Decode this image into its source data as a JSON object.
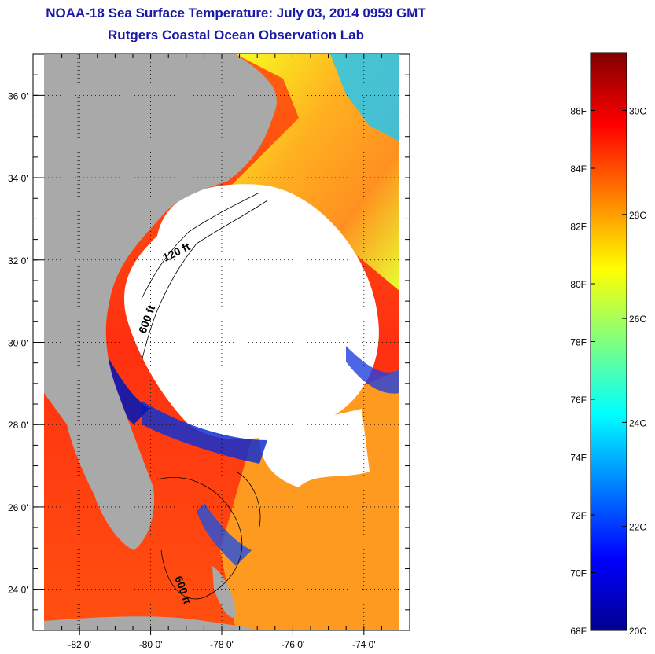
{
  "title": "NOAA-18 Sea Surface Temperature:  July 03, 2014 0959 GMT",
  "subtitle": "Rutgers Coastal Ocean Observation Lab",
  "map": {
    "lon_range": [
      -83,
      -73
    ],
    "lat_range": [
      23,
      37
    ],
    "lon_labels": [
      "-82 0'",
      "-80 0'",
      "-78 0'",
      "-76 0'",
      "-74 0'"
    ],
    "lat_labels": [
      "36 0'",
      "34 0'",
      "32 0'",
      "30 0'",
      "28 0'",
      "26 0'",
      "24 0'"
    ],
    "contour_labels": [
      "120 ft",
      "600 ft",
      "600 ft"
    ],
    "colors": {
      "land": "#a9a9a9",
      "cloud": "#ffffff",
      "grid": "#000000"
    }
  },
  "colorbar": {
    "fahrenheit_labels": [
      "86F",
      "84F",
      "82F",
      "80F",
      "78F",
      "76F",
      "74F",
      "72F",
      "70F",
      "68F"
    ],
    "celsius_labels": [
      "30C",
      "28C",
      "26C",
      "24C",
      "22C",
      "20C"
    ],
    "range_f": [
      68,
      88
    ]
  }
}
